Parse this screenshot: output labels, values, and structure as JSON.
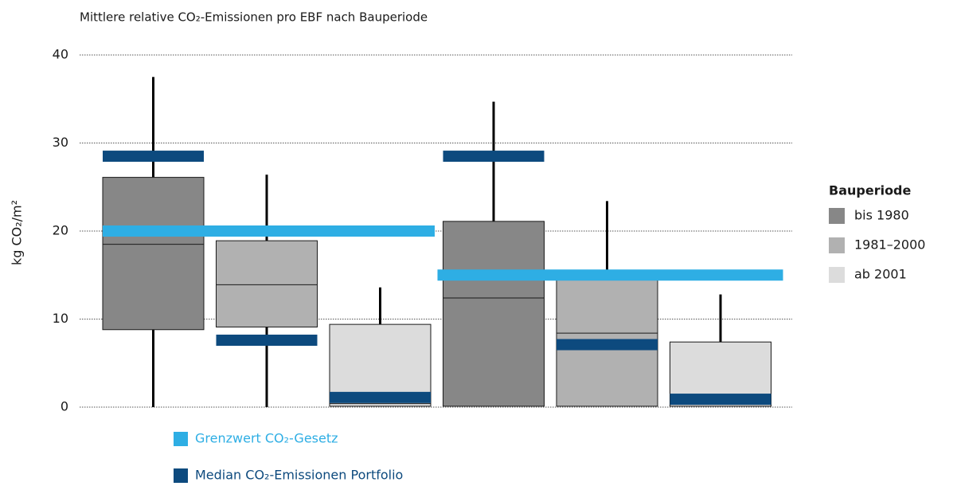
{
  "chart_data": {
    "type": "box",
    "title": "Mittlere relative CO₂-Emissionen pro EBF nach Bauperiode",
    "y_label": "kg CO₂/m²",
    "ylim": [
      0,
      40
    ],
    "yticks": [
      0,
      10,
      20,
      30,
      40
    ],
    "grid": true,
    "legend_title": "Bauperiode",
    "series": [
      {
        "name": "bis 1980",
        "color": "#878787",
        "boxes": [
          {
            "low": 0,
            "q1": 8.8,
            "median": 18.5,
            "q3": 26.1,
            "high": 37.5
          },
          {
            "low": 0.1,
            "q1": 0.1,
            "median": 12.4,
            "q3": 21.1,
            "high": 34.7
          }
        ]
      },
      {
        "name": "1981–2000",
        "color": "#b1b1b1",
        "boxes": [
          {
            "low": 0,
            "q1": 9.1,
            "median": 13.9,
            "q3": 18.9,
            "high": 26.4
          },
          {
            "low": 0.1,
            "q1": 0.1,
            "median": 8.4,
            "q3": 15,
            "high": 23.4
          }
        ]
      },
      {
        "name": "ab 2001",
        "color": "#dcdcdc",
        "boxes": [
          {
            "low": 0.1,
            "q1": 0.1,
            "median": 0.4,
            "q3": 9.4,
            "high": 13.6
          },
          {
            "low": 0.1,
            "q1": 0.1,
            "median": 0.3,
            "q3": 7.4,
            "high": 12.8
          }
        ]
      }
    ],
    "limit": {
      "name": "Grenzwert CO₂-Gesetz",
      "color": "#2eaee4",
      "values": [
        20,
        15
      ]
    },
    "portfolio_median": {
      "name": "Median CO₂-Emissionen Portfolio",
      "color": "#0d4a7e",
      "values": [
        [
          28.5,
          7.6,
          1.1
        ],
        [
          28.5,
          7.1,
          0.9
        ]
      ]
    }
  }
}
